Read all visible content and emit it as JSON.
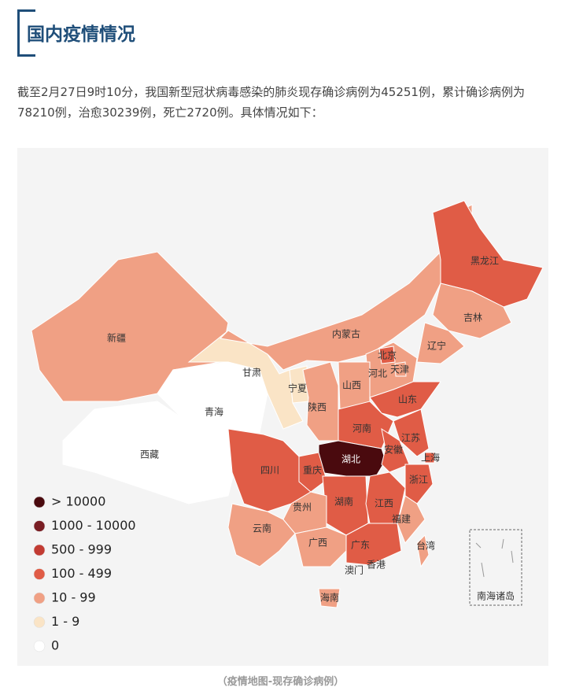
{
  "header": {
    "title": "国内疫情情况"
  },
  "intro": "截至2月27日9时10分，我国新型冠状病毒感染的肺炎现存确诊病例为45251例，累计确诊病例为78210例，治愈30239例，死亡2720例。具体情况如下：",
  "map": {
    "provinces": [
      {
        "name": "新疆",
        "color": "#f0a084"
      },
      {
        "name": "西藏",
        "color": "#ffffff"
      },
      {
        "name": "青海",
        "color": "#ffffff"
      },
      {
        "name": "甘肃",
        "color": "#fae4c6"
      },
      {
        "name": "内蒙古",
        "color": "#f0a084"
      },
      {
        "name": "宁夏",
        "color": "#fae4c6"
      },
      {
        "name": "黑龙江",
        "color": "#e05c46"
      },
      {
        "name": "吉林",
        "color": "#f0a084"
      },
      {
        "name": "辽宁",
        "color": "#f0a084"
      },
      {
        "name": "河北",
        "color": "#f0a084"
      },
      {
        "name": "北京",
        "color": "#e05c46"
      },
      {
        "name": "天津",
        "color": "#f0a084"
      },
      {
        "name": "山西",
        "color": "#f0a084"
      },
      {
        "name": "陕西",
        "color": "#f0a084"
      },
      {
        "name": "山东",
        "color": "#e05c46"
      },
      {
        "name": "河南",
        "color": "#e05c46"
      },
      {
        "name": "湖北",
        "color": "#4a0a0e"
      },
      {
        "name": "四川",
        "color": "#e05c46"
      },
      {
        "name": "重庆",
        "color": "#e05c46"
      },
      {
        "name": "江苏",
        "color": "#e05c46"
      },
      {
        "name": "安徽",
        "color": "#e05c46"
      },
      {
        "name": "上海",
        "color": "#e05c46"
      },
      {
        "name": "浙江",
        "color": "#e05c46"
      },
      {
        "name": "湖南",
        "color": "#e05c46"
      },
      {
        "name": "江西",
        "color": "#e05c46"
      },
      {
        "name": "贵州",
        "color": "#f0a084"
      },
      {
        "name": "云南",
        "color": "#f0a084"
      },
      {
        "name": "广西",
        "color": "#f0a084"
      },
      {
        "name": "广东",
        "color": "#e05c46"
      },
      {
        "name": "福建",
        "color": "#f0a084"
      },
      {
        "name": "台湾",
        "color": "#f0a084"
      },
      {
        "name": "海南",
        "color": "#f0a084"
      },
      {
        "name": "澳门"
      },
      {
        "name": "香港"
      }
    ],
    "inset_label": "南海诸岛",
    "legend": [
      {
        "label": "> 10000",
        "color": "#4a0a0e"
      },
      {
        "label": "1000 - 10000",
        "color": "#7a1e24"
      },
      {
        "label": "500 - 999",
        "color": "#c23b32"
      },
      {
        "label": "100 - 499",
        "color": "#e05c46"
      },
      {
        "label": "10 - 99",
        "color": "#f0a084"
      },
      {
        "label": "1 - 9",
        "color": "#fae4c6"
      },
      {
        "label": "0",
        "color": "#ffffff"
      }
    ]
  },
  "caption": "（疫情地图-现存确诊病例）"
}
